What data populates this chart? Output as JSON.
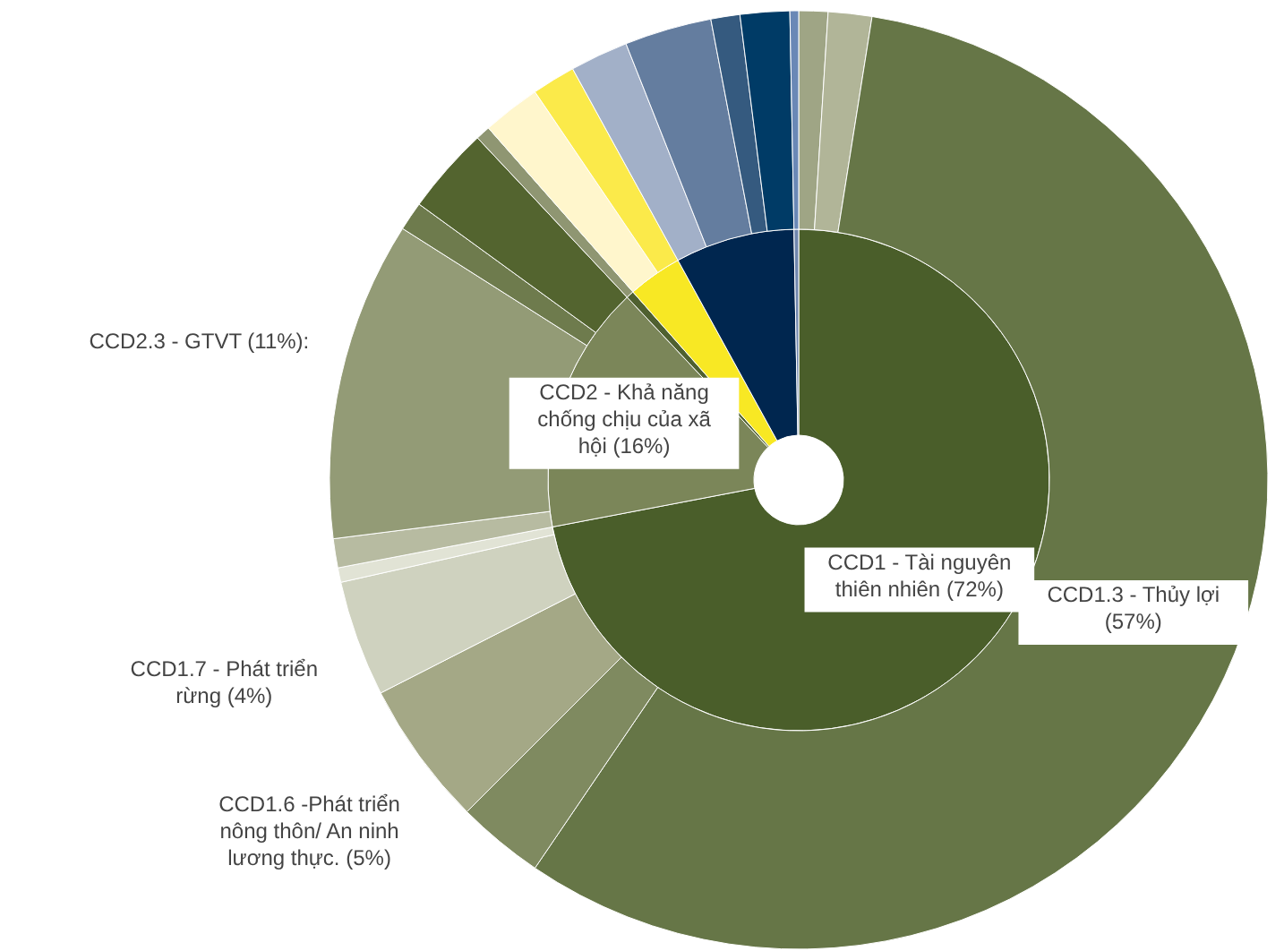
{
  "chart_data": {
    "type": "donut",
    "series": [
      {
        "value_labels": [
          "CCD1 - Tài nguyên thiên nhiên (72%)",
          "CCD2 - Khả năng chống chịu của xã hội (16%)",
          null,
          null,
          null,
          null
        ],
        "values": [
          72,
          16,
          0.5,
          3.5,
          7.7,
          0.3
        ],
        "colors": [
          "#4a5e2a",
          "#7b8659",
          "#4f6030",
          "#f8e824",
          "#00264f",
          "#6f86ae"
        ]
      },
      {
        "value_labels": [
          null,
          null,
          "CCD1.3 - Thủy lợi (57%)",
          null,
          "CCD1.6 -Phát triển nông thôn/ An ninh lương thực. (5%)",
          "CCD1.7 - Phát triển rừng (4%)",
          null,
          null,
          "CCD2.3 - GTVT (11%):",
          null,
          null,
          null,
          null,
          null,
          null,
          null,
          null,
          null,
          null
        ],
        "values": [
          1,
          1.5,
          57,
          3,
          5,
          4,
          0.5,
          1,
          11,
          1,
          3,
          0.5,
          2,
          1.5,
          2,
          3,
          1,
          1.7,
          0.3
        ],
        "colors": [
          "#9fa585",
          "#b1b598",
          "#667647",
          "#7f8a60",
          "#a4a886",
          "#cfd2bf",
          "#e1e3d5",
          "#b7bba1",
          "#939b76",
          "#6e7b4d",
          "#53642f",
          "#8f9672",
          "#fff6cc",
          "#fbea4a",
          "#a2b0c8",
          "#647d9f",
          "#355a7f",
          "#003b66",
          "#6a88b6"
        ]
      }
    ]
  }
}
